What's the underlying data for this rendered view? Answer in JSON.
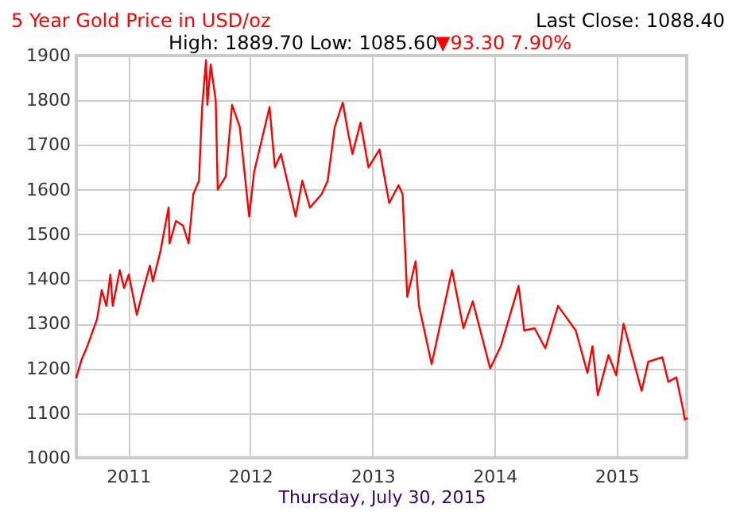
{
  "chart_data": {
    "type": "line",
    "title": "5 Year Gold Price in USD/oz",
    "xlabel": "Thursday, July 30, 2015",
    "annotations": [
      "Last Close: 1088.40",
      "High: 1889.70 Low: 1085.60",
      "▼93.30 7.90%"
    ],
    "x": [
      "2010-07-30",
      "2010-08-15",
      "2010-09-01",
      "2010-09-30",
      "2010-10-14",
      "2010-10-28",
      "2010-11-09",
      "2010-11-16",
      "2010-12-07",
      "2010-12-20",
      "2011-01-03",
      "2011-01-27",
      "2011-02-15",
      "2011-03-07",
      "2011-03-16",
      "2011-04-07",
      "2011-05-02",
      "2011-05-05",
      "2011-05-24",
      "2011-06-14",
      "2011-07-01",
      "2011-07-15",
      "2011-08-01",
      "2011-08-10",
      "2011-08-22",
      "2011-08-26",
      "2011-09-05",
      "2011-09-20",
      "2011-09-26",
      "2011-10-20",
      "2011-11-08",
      "2011-12-01",
      "2011-12-29",
      "2012-01-13",
      "2012-02-28",
      "2012-03-15",
      "2012-04-02",
      "2012-05-16",
      "2012-06-05",
      "2012-06-28",
      "2012-08-02",
      "2012-08-20",
      "2012-09-10",
      "2012-10-04",
      "2012-10-22",
      "2012-11-02",
      "2012-11-26",
      "2012-12-20",
      "2013-01-22",
      "2013-02-20",
      "2013-03-20",
      "2013-04-01",
      "2013-04-15",
      "2013-05-10",
      "2013-05-20",
      "2013-06-27",
      "2013-08-27",
      "2013-09-30",
      "2013-10-28",
      "2013-12-19",
      "2014-01-20",
      "2014-03-14",
      "2014-03-31",
      "2014-05-01",
      "2014-06-02",
      "2014-07-10",
      "2014-09-01",
      "2014-10-06",
      "2014-10-21",
      "2014-11-06",
      "2014-12-08",
      "2014-12-31",
      "2015-01-22",
      "2015-03-17",
      "2015-04-06",
      "2015-05-18",
      "2015-06-05",
      "2015-06-29",
      "2015-07-20",
      "2015-07-24",
      "2015-07-30"
    ],
    "series": [
      {
        "color": "#ff0000",
        "values": [
          1180,
          1220,
          1250,
          1310,
          1375,
          1340,
          1410,
          1340,
          1420,
          1380,
          1410,
          1320,
          1375,
          1430,
          1395,
          1460,
          1560,
          1480,
          1530,
          1520,
          1480,
          1590,
          1620,
          1780,
          1889.7,
          1790,
          1880,
          1800,
          1600,
          1630,
          1790,
          1740,
          1540,
          1640,
          1785,
          1650,
          1680,
          1540,
          1620,
          1560,
          1590,
          1620,
          1740,
          1795,
          1720,
          1680,
          1750,
          1650,
          1690,
          1570,
          1610,
          1590,
          1360,
          1440,
          1340,
          1210,
          1420,
          1290,
          1350,
          1200,
          1250,
          1385,
          1285,
          1290,
          1245,
          1340,
          1285,
          1190,
          1250,
          1140,
          1230,
          1185,
          1300,
          1150,
          1215,
          1225,
          1170,
          1180,
          1105,
          1085.6,
          1088.4
        ]
      }
    ],
    "xlim": [
      "2010-07-30",
      "2015-07-30"
    ],
    "xticks": [
      {
        "value": "2011-01-01",
        "label": "2011"
      },
      {
        "value": "2012-01-01",
        "label": "2012"
      },
      {
        "value": "2013-01-01",
        "label": "2013"
      },
      {
        "value": "2014-01-01",
        "label": "2014"
      },
      {
        "value": "2015-01-01",
        "label": "2015"
      }
    ],
    "ylim": [
      1000,
      1900
    ],
    "yticks": [
      1000,
      1100,
      1200,
      1300,
      1400,
      1500,
      1600,
      1700,
      1800,
      1900
    ],
    "grid": true,
    "line_style": "solid"
  }
}
